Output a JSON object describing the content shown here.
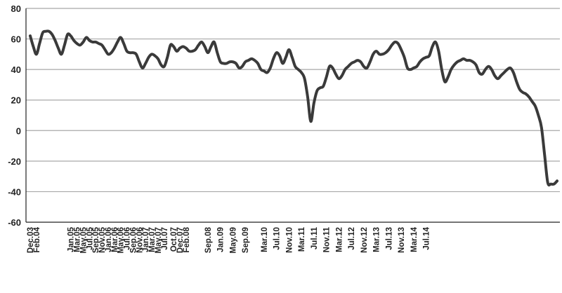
{
  "chart_data": {
    "type": "line",
    "title": "",
    "xlabel": "",
    "ylabel": "",
    "ylim": [
      -60,
      80
    ],
    "yticks": [
      -60,
      -40,
      -20,
      0,
      20,
      40,
      60,
      80
    ],
    "grid": true,
    "legend": "none",
    "colors": {
      "line": "#3a3a3a",
      "grid": "#a8a8a8",
      "axis": "#222222"
    },
    "start_month": "Dec.03",
    "xtick_labels": [
      "Dec.03",
      "Feb.04",
      "Jan.05",
      "Mar.05",
      "May.05",
      "Jul.05",
      "Sep.05",
      "Nov.05",
      "Jan.06",
      "Mar.06",
      "May.06",
      "Jul.06",
      "Sep.06",
      "Nov.06",
      "Jan.07",
      "Mar.07",
      "May.07",
      "Jul.07",
      "Oct.07",
      "Dec.07",
      "Feb.08",
      "Sep.08",
      "Jan.09",
      "May.09",
      "Sep.09",
      "Mar.10",
      "Jul.10",
      "Nov.10",
      "Mar.11",
      "Jul.11",
      "Nov.11",
      "Mar.12",
      "Jul.12",
      "Nov.12",
      "Mar.13",
      "Jul.13",
      "Nov.13",
      "Mar.14",
      "Jul.14"
    ],
    "series": [
      {
        "name": "",
        "values": [
          62,
          55,
          50,
          57,
          64,
          65,
          65,
          63,
          59,
          54,
          50,
          56,
          63,
          62,
          59,
          57,
          56,
          58,
          61,
          59,
          58,
          58,
          57,
          56,
          53,
          50,
          51,
          54,
          58,
          61,
          57,
          52,
          51,
          51,
          50,
          45,
          41,
          44,
          48,
          50,
          49,
          47,
          43,
          42,
          48,
          56,
          55,
          52,
          54,
          55,
          54,
          52,
          52,
          53,
          56,
          58,
          55,
          51,
          55,
          58,
          51,
          45,
          44,
          44,
          45,
          45,
          44,
          41,
          42,
          45,
          46,
          47,
          46,
          44,
          40,
          39,
          38,
          41,
          47,
          51,
          49,
          44,
          48,
          53,
          48,
          42,
          40,
          38,
          34,
          22,
          6,
          18,
          26,
          28,
          29,
          35,
          42,
          41,
          37,
          34,
          36,
          40,
          42,
          44,
          45,
          46,
          45,
          42,
          41,
          45,
          50,
          52,
          50,
          50,
          51,
          53,
          56,
          58,
          57,
          53,
          48,
          41,
          40,
          41,
          42,
          45,
          47,
          48,
          49,
          55,
          58,
          52,
          40,
          32,
          35,
          40,
          43,
          45,
          46,
          47,
          46,
          46,
          45,
          43,
          38,
          37,
          40,
          42,
          40,
          36,
          34,
          36,
          38,
          40,
          41,
          38,
          32,
          27,
          25,
          24,
          22,
          19,
          16,
          10,
          2,
          -16,
          -34,
          -35,
          -35,
          -33
        ]
      }
    ]
  }
}
